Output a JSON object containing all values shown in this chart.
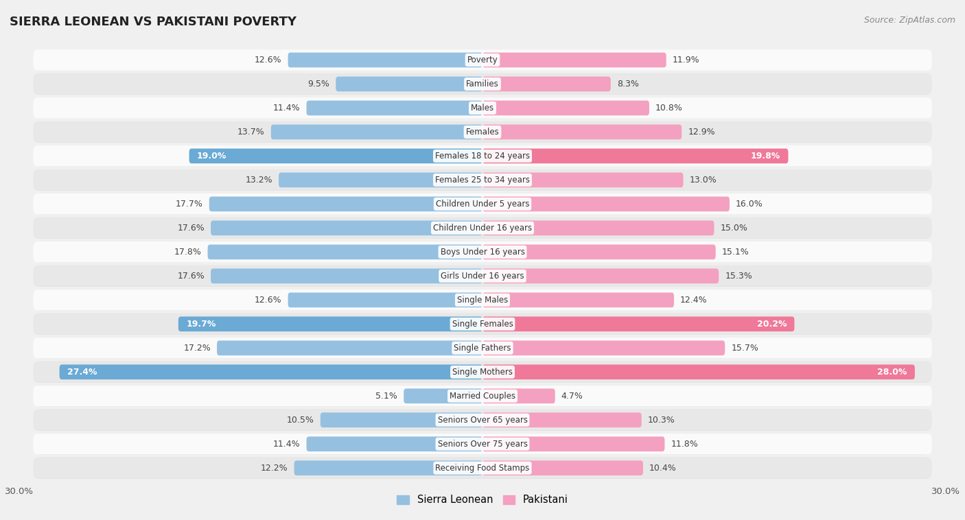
{
  "title": "SIERRA LEONEAN VS PAKISTANI POVERTY",
  "source": "Source: ZipAtlas.com",
  "categories": [
    "Poverty",
    "Families",
    "Males",
    "Females",
    "Females 18 to 24 years",
    "Females 25 to 34 years",
    "Children Under 5 years",
    "Children Under 16 years",
    "Boys Under 16 years",
    "Girls Under 16 years",
    "Single Males",
    "Single Females",
    "Single Fathers",
    "Single Mothers",
    "Married Couples",
    "Seniors Over 65 years",
    "Seniors Over 75 years",
    "Receiving Food Stamps"
  ],
  "sierra_leonean": [
    12.6,
    9.5,
    11.4,
    13.7,
    19.0,
    13.2,
    17.7,
    17.6,
    17.8,
    17.6,
    12.6,
    19.7,
    17.2,
    27.4,
    5.1,
    10.5,
    11.4,
    12.2
  ],
  "pakistani": [
    11.9,
    8.3,
    10.8,
    12.9,
    19.8,
    13.0,
    16.0,
    15.0,
    15.1,
    15.3,
    12.4,
    20.2,
    15.7,
    28.0,
    4.7,
    10.3,
    11.8,
    10.4
  ],
  "sl_color_normal": "#95c0e0",
  "sl_color_highlight": "#6aaad4",
  "pk_color_normal": "#f4a0c0",
  "pk_color_highlight": "#f07898",
  "highlight_rows": [
    4,
    11,
    13
  ],
  "xlim": 30.0,
  "background_color": "#f0f0f0",
  "row_bg_light": "#fafafa",
  "row_bg_dark": "#e8e8e8",
  "bar_height": 0.62,
  "legend_sl": "Sierra Leonean",
  "legend_pk": "Pakistani",
  "title_fontsize": 13,
  "source_fontsize": 9,
  "label_fontsize": 9,
  "cat_fontsize": 8.5
}
